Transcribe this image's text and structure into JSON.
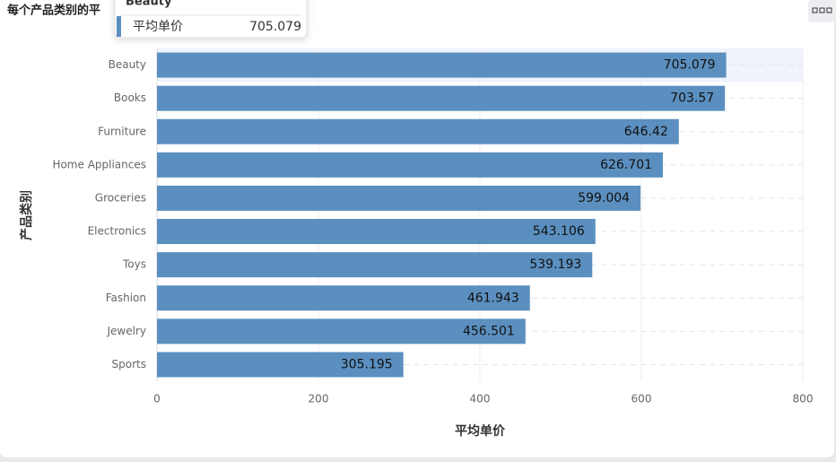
{
  "chart_data": {
    "type": "bar",
    "orientation": "horizontal",
    "title": "每个产品类别的平",
    "xlabel": "平均单价",
    "ylabel": "产品类别",
    "categories": [
      "Beauty",
      "Books",
      "Furniture",
      "Home Appliances",
      "Groceries",
      "Electronics",
      "Toys",
      "Fashion",
      "Jewelry",
      "Sports"
    ],
    "series": [
      {
        "name": "平均单价",
        "color": "#5b8fbf",
        "values": [
          705.079,
          703.57,
          646.42,
          626.701,
          599.004,
          543.106,
          539.193,
          461.943,
          456.501,
          305.195
        ]
      }
    ],
    "xlim": [
      0,
      800
    ],
    "xticks": [
      0,
      200,
      400,
      600,
      800
    ],
    "grid": true,
    "tooltip": {
      "category": "Beauty",
      "series": "平均单价",
      "value": 705.079
    }
  }
}
